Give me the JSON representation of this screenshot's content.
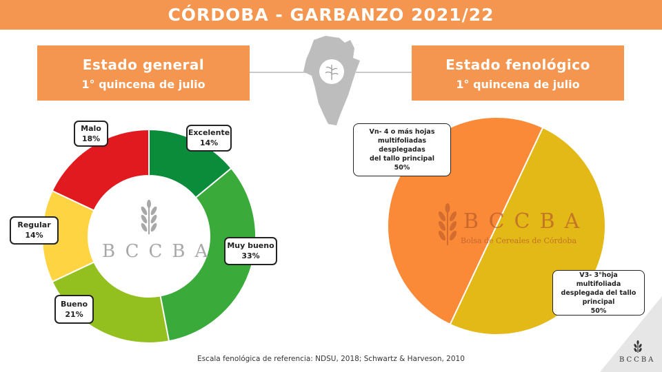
{
  "title": "CÓRDOBA - GARBANZO 2021/22",
  "left_panel": {
    "heading": "Estado general",
    "subheading": "1° quincena de julio"
  },
  "right_panel": {
    "heading": "Estado fenológico",
    "subheading": "1° quincena de julio"
  },
  "logo_text": "BCCBA",
  "logo_subtitle": "Bolsa de Cereales de Córdoba",
  "corner_logo_text": "BCCBA",
  "footnote": "Escala fenológica de referencia: NDSU, 2018; Schwartz & Harveson, 2010",
  "colors": {
    "header": "#f4964f",
    "excelente": "#0a8c3a",
    "muy_bueno": "#3aab3a",
    "bueno": "#93c01f",
    "regular": "#fed443",
    "malo": "#e01a1e",
    "vn": "#fb8a38",
    "v3": "#e3b917"
  },
  "chart_data": [
    {
      "type": "pie",
      "variant": "donut",
      "title": "Estado general",
      "categories": [
        "Excelente",
        "Muy bueno",
        "Bueno",
        "Regular",
        "Malo"
      ],
      "values": [
        14,
        33,
        21,
        14,
        18
      ],
      "labels": [
        "14%",
        "33%",
        "21%",
        "14%",
        "18%"
      ]
    },
    {
      "type": "pie",
      "title": "Estado fenológico",
      "categories": [
        "Vn- 4 o más hojas multifoliadas desplegadas del tallo principal",
        "V3- 3°hoja multifoliada desplegada del tallo principal"
      ],
      "values": [
        50,
        50
      ],
      "labels": [
        "50%",
        "50%"
      ]
    }
  ],
  "vn_label_lines": [
    "Vn- 4 o más hojas",
    "multifoliadas desplegadas",
    "del tallo principal",
    "50%"
  ],
  "v3_label_lines": [
    "V3- 3°hoja multifoliada",
    "desplegada del tallo",
    "principal",
    "50%"
  ]
}
